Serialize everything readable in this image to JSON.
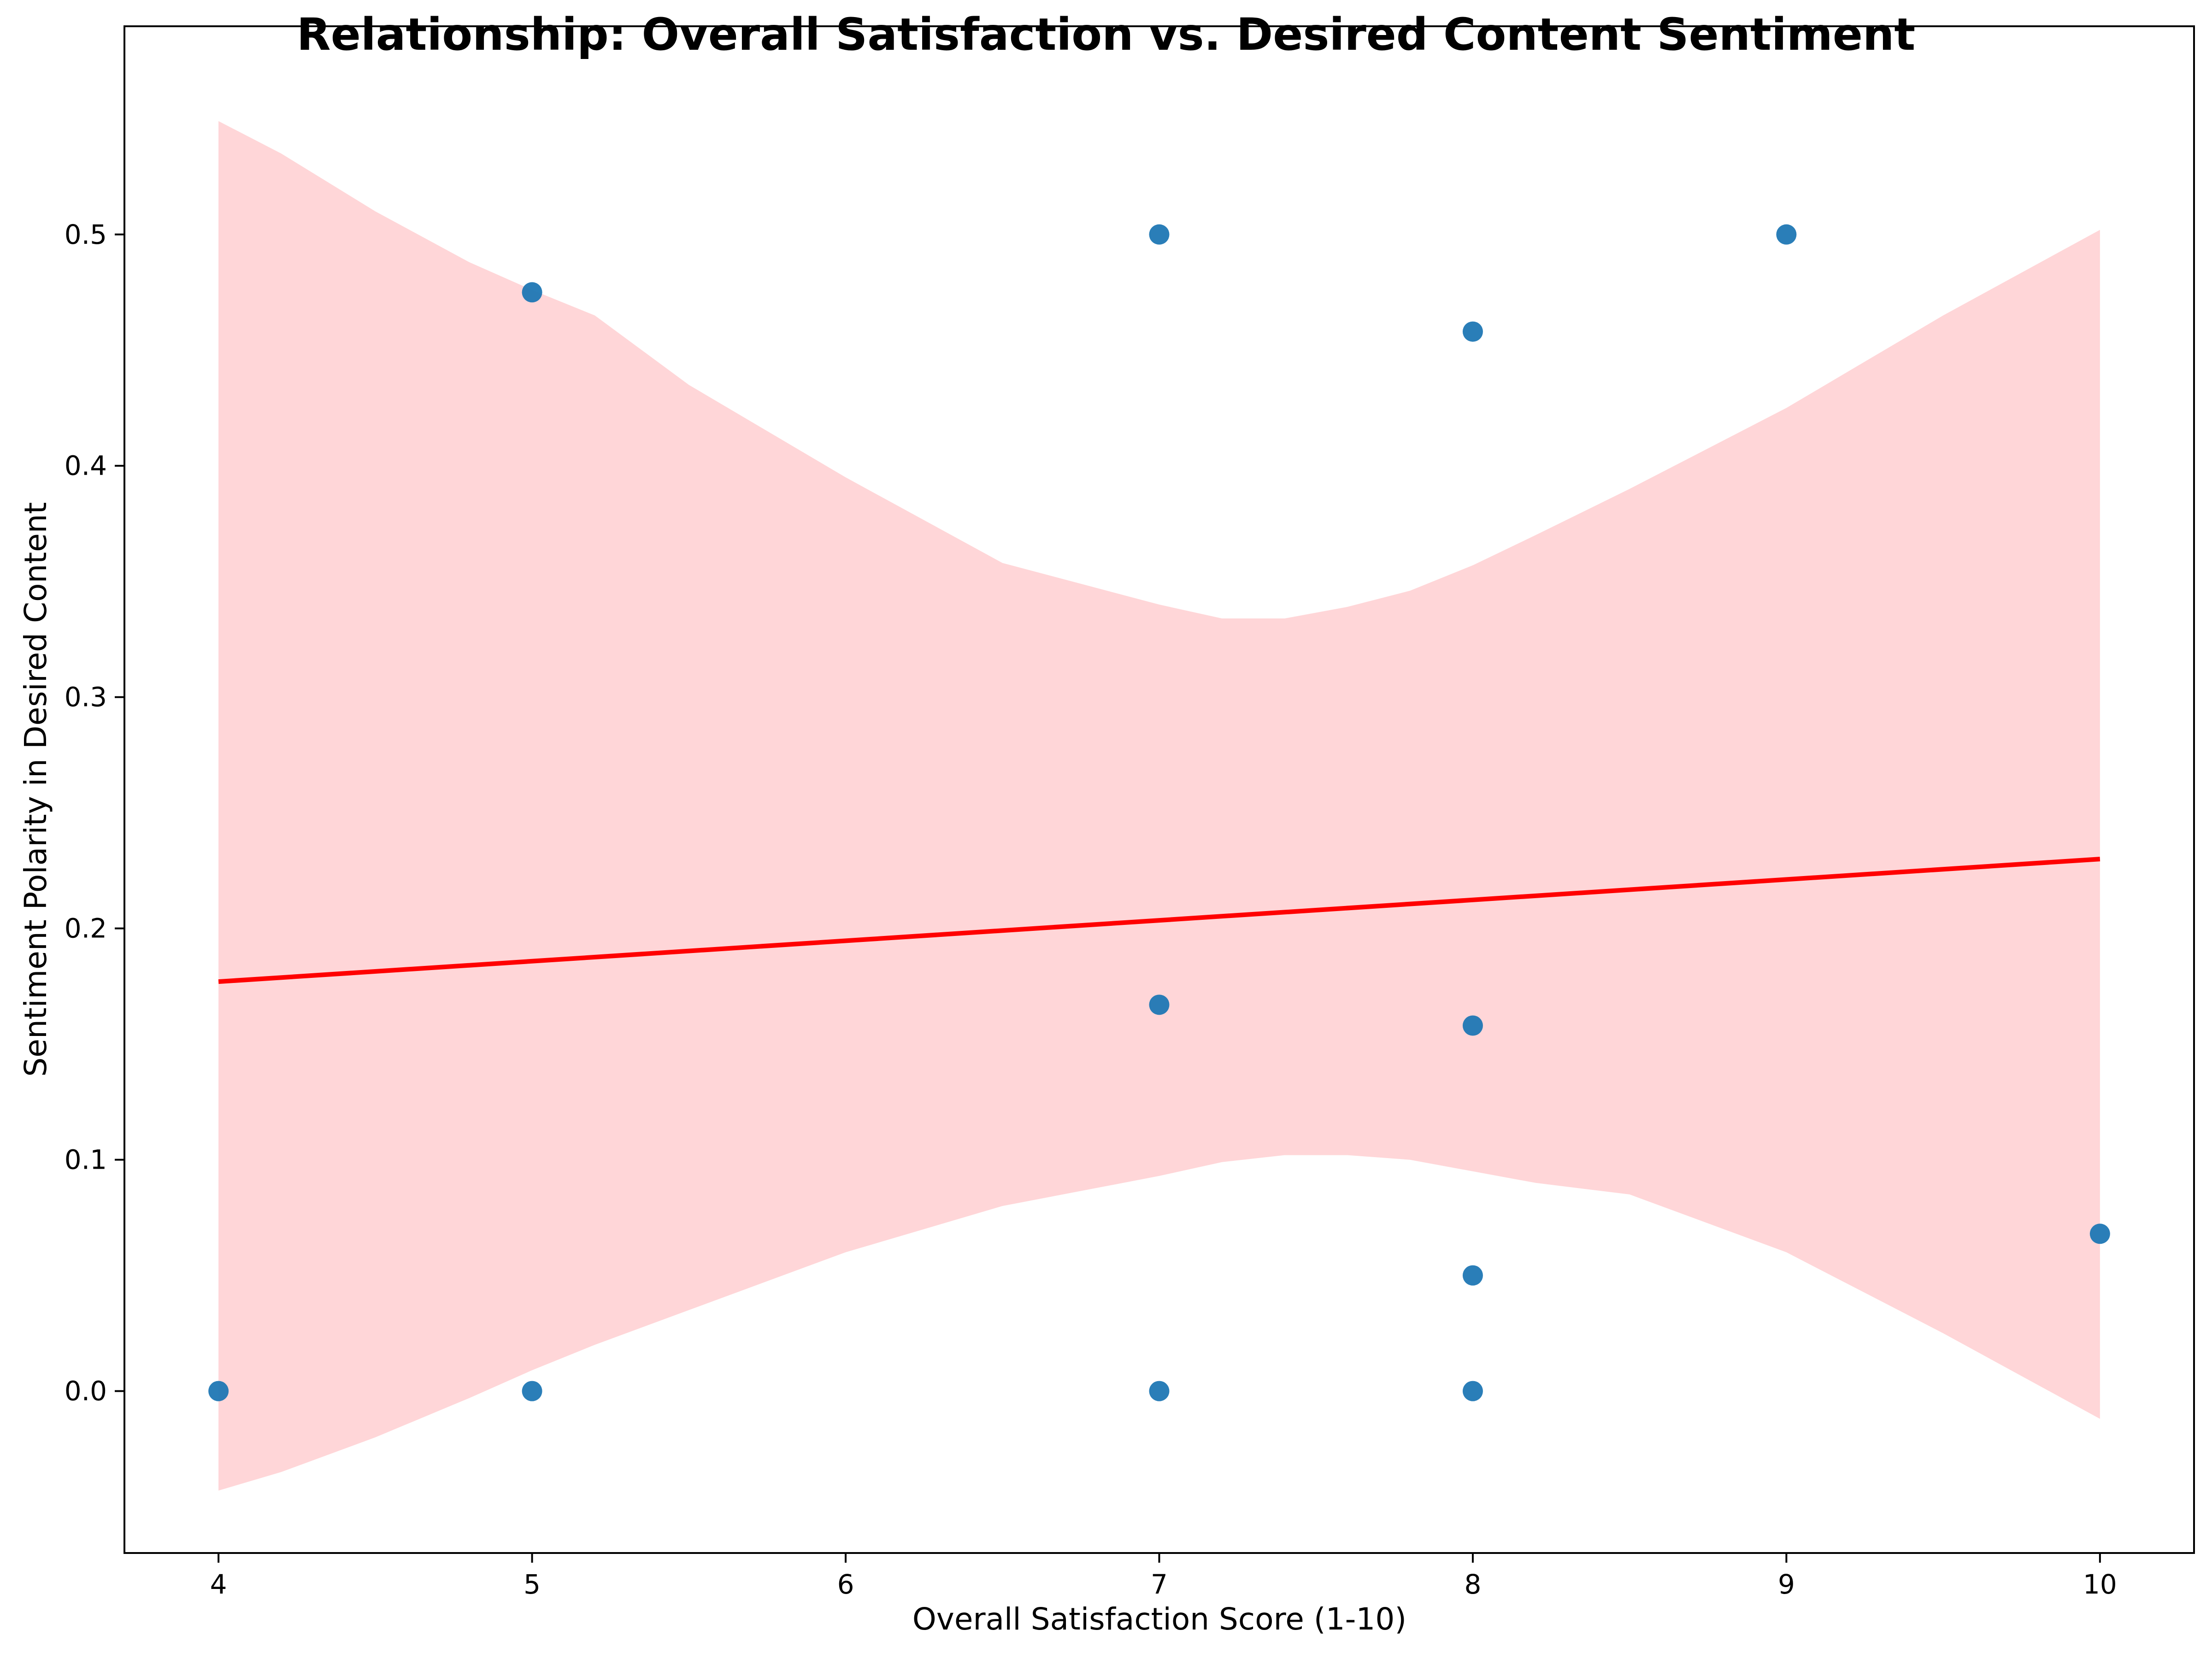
{
  "chart_data": {
    "type": "scatter",
    "title": "Relationship: Overall Satisfaction vs. Desired Content Sentiment",
    "xlabel": "Overall Satisfaction Score (1-10)",
    "ylabel": "Sentiment Polarity in Desired Content",
    "xlim": [
      3.7,
      10.3
    ],
    "ylim": [
      -0.07,
      0.59
    ],
    "xticks": [
      4,
      5,
      6,
      7,
      8,
      9,
      10
    ],
    "xtick_labels": [
      "4",
      "5",
      "6",
      "7",
      "8",
      "9",
      "10"
    ],
    "yticks": [
      0.0,
      0.1,
      0.2,
      0.3,
      0.4,
      0.5
    ],
    "ytick_labels": [
      "0.0",
      "0.1",
      "0.2",
      "0.3",
      "0.4",
      "0.5"
    ],
    "grid": false,
    "points": [
      {
        "x": 4,
        "y": 0.0
      },
      {
        "x": 5,
        "y": 0.475
      },
      {
        "x": 5,
        "y": 0.0
      },
      {
        "x": 7,
        "y": 0.5
      },
      {
        "x": 7,
        "y": 0.167
      },
      {
        "x": 7,
        "y": 0.0
      },
      {
        "x": 8,
        "y": 0.458
      },
      {
        "x": 8,
        "y": 0.158
      },
      {
        "x": 8,
        "y": 0.05
      },
      {
        "x": 8,
        "y": 0.0
      },
      {
        "x": 9,
        "y": 0.5
      },
      {
        "x": 10,
        "y": 0.068
      }
    ],
    "regression": {
      "x": [
        4,
        10
      ],
      "y": [
        0.177,
        0.23
      ]
    },
    "confidence_band": {
      "x": [
        4.0,
        4.2,
        4.5,
        4.8,
        5.0,
        5.2,
        5.5,
        6.0,
        6.5,
        7.0,
        7.2,
        7.4,
        7.6,
        7.8,
        8.0,
        8.2,
        8.5,
        9.0,
        9.5,
        10.0
      ],
      "upper": [
        0.549,
        0.535,
        0.51,
        0.488,
        0.476,
        0.465,
        0.435,
        0.395,
        0.358,
        0.34,
        0.334,
        0.334,
        0.339,
        0.346,
        0.357,
        0.37,
        0.39,
        0.425,
        0.465,
        0.502
      ],
      "lower": [
        -0.043,
        -0.035,
        -0.02,
        -0.003,
        0.009,
        0.02,
        0.035,
        0.06,
        0.08,
        0.093,
        0.099,
        0.102,
        0.102,
        0.1,
        0.095,
        0.09,
        0.085,
        0.06,
        0.025,
        -0.012
      ]
    },
    "colors": {
      "points": "#1f77b4",
      "regression_line": "#ff0000",
      "confidence_band": "#ffd6d8"
    }
  }
}
